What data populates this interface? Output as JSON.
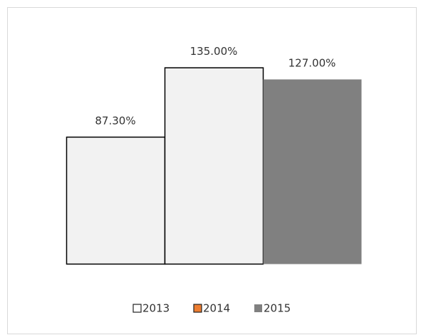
{
  "chart_data": {
    "type": "bar",
    "series": [
      {
        "name": "2013",
        "color": "#f2f2f2",
        "legend_color": "#ffffff",
        "values": [
          87.3
        ],
        "value_labels": [
          "87.30%"
        ]
      },
      {
        "name": "2014",
        "color": "#f2f2f2",
        "legend_color": "#ed7d31",
        "values": [
          135
        ],
        "value_labels": [
          "135.00%"
        ]
      },
      {
        "name": "2015",
        "color": "#808080",
        "legend_color": "#808080",
        "values": [
          127
        ],
        "value_labels": [
          "127.00%"
        ]
      }
    ],
    "ylim": [
      0,
      150
    ],
    "legend": "bottom"
  }
}
